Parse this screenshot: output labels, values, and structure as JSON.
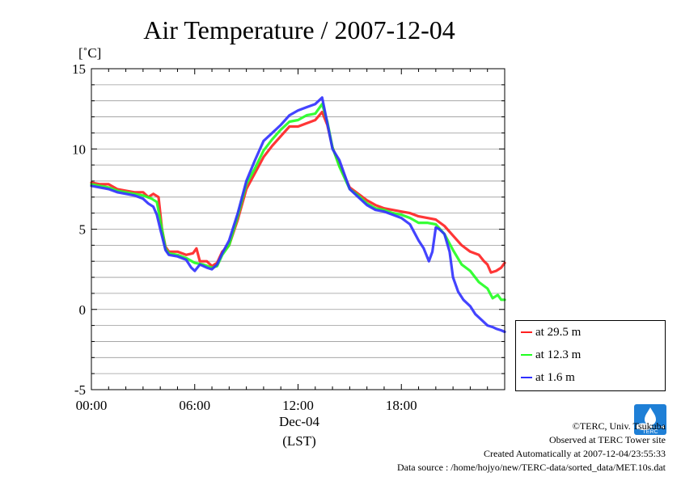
{
  "chart_data": {
    "type": "line",
    "title": "Air Temperature / 2007-12-04",
    "ylabel": "[˚C]",
    "xlabel": "Dec-04",
    "xlabel2": "(LST)",
    "xlim": [
      0,
      24
    ],
    "ylim": [
      -5,
      15
    ],
    "yticks": [
      {
        "value": 15,
        "label": "15"
      },
      {
        "value": 10,
        "label": "10"
      },
      {
        "value": 5,
        "label": "5"
      },
      {
        "value": 0,
        "label": "0"
      },
      {
        "value": -5,
        "label": "-5"
      }
    ],
    "xticks": [
      {
        "value": 0,
        "label": "00:00"
      },
      {
        "value": 6,
        "label": "06:00"
      },
      {
        "value": 12,
        "label": "12:00"
      },
      {
        "value": 18,
        "label": "18:00"
      }
    ],
    "grid": true,
    "legend_position": "right",
    "series": [
      {
        "name": "at 29.5 m",
        "color": "#ff2020",
        "points": [
          [
            0,
            7.9
          ],
          [
            0.5,
            7.8
          ],
          [
            1,
            7.8
          ],
          [
            1.5,
            7.5
          ],
          [
            2,
            7.4
          ],
          [
            2.5,
            7.3
          ],
          [
            3,
            7.3
          ],
          [
            3.3,
            7.0
          ],
          [
            3.6,
            7.2
          ],
          [
            3.9,
            7.0
          ],
          [
            4.1,
            5.0
          ],
          [
            4.3,
            3.9
          ],
          [
            4.5,
            3.6
          ],
          [
            5,
            3.6
          ],
          [
            5.5,
            3.4
          ],
          [
            5.9,
            3.5
          ],
          [
            6.1,
            3.8
          ],
          [
            6.3,
            3.0
          ],
          [
            6.7,
            3.0
          ],
          [
            7.0,
            2.7
          ],
          [
            7.3,
            2.9
          ],
          [
            7.6,
            3.6
          ],
          [
            8.0,
            4.0
          ],
          [
            8.5,
            5.6
          ],
          [
            9.0,
            7.5
          ],
          [
            9.5,
            8.5
          ],
          [
            10.0,
            9.5
          ],
          [
            10.5,
            10.2
          ],
          [
            11.0,
            10.8
          ],
          [
            11.5,
            11.4
          ],
          [
            12.0,
            11.4
          ],
          [
            12.5,
            11.6
          ],
          [
            13.0,
            11.8
          ],
          [
            13.4,
            12.3
          ],
          [
            13.7,
            11.5
          ],
          [
            14.0,
            10.1
          ],
          [
            14.4,
            9.0
          ],
          [
            15.0,
            7.6
          ],
          [
            15.5,
            7.2
          ],
          [
            16.0,
            6.8
          ],
          [
            16.5,
            6.5
          ],
          [
            17.0,
            6.3
          ],
          [
            17.5,
            6.2
          ],
          [
            18.0,
            6.1
          ],
          [
            18.5,
            6.0
          ],
          [
            19.0,
            5.8
          ],
          [
            19.5,
            5.7
          ],
          [
            20.0,
            5.6
          ],
          [
            20.5,
            5.2
          ],
          [
            21.0,
            4.6
          ],
          [
            21.5,
            4.0
          ],
          [
            22.0,
            3.6
          ],
          [
            22.5,
            3.4
          ],
          [
            22.8,
            3.0
          ],
          [
            23.0,
            2.8
          ],
          [
            23.2,
            2.3
          ],
          [
            23.5,
            2.4
          ],
          [
            23.8,
            2.6
          ],
          [
            24.0,
            2.9
          ]
        ]
      },
      {
        "name": "at 12.3 m",
        "color": "#20ff20",
        "points": [
          [
            0,
            7.8
          ],
          [
            0.5,
            7.7
          ],
          [
            1,
            7.6
          ],
          [
            1.5,
            7.4
          ],
          [
            2,
            7.3
          ],
          [
            2.5,
            7.2
          ],
          [
            3,
            7.1
          ],
          [
            3.5,
            6.9
          ],
          [
            3.8,
            6.7
          ],
          [
            4.1,
            5.0
          ],
          [
            4.3,
            3.8
          ],
          [
            4.5,
            3.5
          ],
          [
            5,
            3.4
          ],
          [
            5.5,
            3.2
          ],
          [
            6.0,
            2.9
          ],
          [
            6.5,
            2.8
          ],
          [
            7.0,
            2.6
          ],
          [
            7.3,
            2.7
          ],
          [
            7.6,
            3.4
          ],
          [
            8.0,
            4.0
          ],
          [
            8.5,
            5.8
          ],
          [
            9.0,
            7.8
          ],
          [
            9.5,
            8.8
          ],
          [
            10.0,
            9.9
          ],
          [
            10.5,
            10.6
          ],
          [
            11.0,
            11.2
          ],
          [
            11.5,
            11.7
          ],
          [
            12.0,
            11.8
          ],
          [
            12.5,
            12.1
          ],
          [
            13.0,
            12.2
          ],
          [
            13.4,
            12.8
          ],
          [
            13.7,
            11.7
          ],
          [
            14.0,
            10.1
          ],
          [
            14.4,
            8.9
          ],
          [
            15.0,
            7.5
          ],
          [
            15.5,
            7.1
          ],
          [
            16.0,
            6.6
          ],
          [
            16.5,
            6.3
          ],
          [
            17.0,
            6.2
          ],
          [
            17.5,
            6.0
          ],
          [
            18.0,
            5.9
          ],
          [
            18.5,
            5.7
          ],
          [
            19.0,
            5.4
          ],
          [
            19.5,
            5.4
          ],
          [
            20.0,
            5.3
          ],
          [
            20.5,
            4.7
          ],
          [
            21.0,
            3.7
          ],
          [
            21.5,
            2.8
          ],
          [
            22.0,
            2.4
          ],
          [
            22.5,
            1.7
          ],
          [
            23.0,
            1.3
          ],
          [
            23.3,
            0.7
          ],
          [
            23.6,
            0.9
          ],
          [
            23.8,
            0.6
          ],
          [
            24.0,
            0.6
          ]
        ]
      },
      {
        "name": "at 1.6 m",
        "color": "#3030ff",
        "points": [
          [
            0,
            7.7
          ],
          [
            0.5,
            7.6
          ],
          [
            1,
            7.5
          ],
          [
            1.5,
            7.3
          ],
          [
            2,
            7.2
          ],
          [
            2.5,
            7.1
          ],
          [
            3.0,
            6.9
          ],
          [
            3.3,
            6.6
          ],
          [
            3.6,
            6.4
          ],
          [
            3.8,
            5.9
          ],
          [
            4.0,
            5.0
          ],
          [
            4.3,
            3.7
          ],
          [
            4.5,
            3.4
          ],
          [
            5,
            3.3
          ],
          [
            5.5,
            3.1
          ],
          [
            5.8,
            2.6
          ],
          [
            6.0,
            2.4
          ],
          [
            6.3,
            2.8
          ],
          [
            6.7,
            2.6
          ],
          [
            7.0,
            2.5
          ],
          [
            7.3,
            2.8
          ],
          [
            7.6,
            3.5
          ],
          [
            8.0,
            4.3
          ],
          [
            8.5,
            6.0
          ],
          [
            9.0,
            8.0
          ],
          [
            9.5,
            9.3
          ],
          [
            10.0,
            10.5
          ],
          [
            10.5,
            11.0
          ],
          [
            11.0,
            11.5
          ],
          [
            11.5,
            12.1
          ],
          [
            12.0,
            12.4
          ],
          [
            12.5,
            12.6
          ],
          [
            13.0,
            12.8
          ],
          [
            13.4,
            13.2
          ],
          [
            13.7,
            11.6
          ],
          [
            14.0,
            10.0
          ],
          [
            14.4,
            9.3
          ],
          [
            15.0,
            7.5
          ],
          [
            15.5,
            7.0
          ],
          [
            16.0,
            6.5
          ],
          [
            16.5,
            6.2
          ],
          [
            17.0,
            6.1
          ],
          [
            17.5,
            5.9
          ],
          [
            18.0,
            5.7
          ],
          [
            18.5,
            5.3
          ],
          [
            19.0,
            4.3
          ],
          [
            19.3,
            3.8
          ],
          [
            19.6,
            3.0
          ],
          [
            19.8,
            3.6
          ],
          [
            20.0,
            5.1
          ],
          [
            20.2,
            5.0
          ],
          [
            20.5,
            4.7
          ],
          [
            20.8,
            3.6
          ],
          [
            21.0,
            2.0
          ],
          [
            21.3,
            1.1
          ],
          [
            21.6,
            0.6
          ],
          [
            22.0,
            0.2
          ],
          [
            22.3,
            -0.3
          ],
          [
            22.7,
            -0.7
          ],
          [
            23.0,
            -1.0
          ],
          [
            23.3,
            -1.1
          ],
          [
            23.5,
            -1.2
          ],
          [
            23.8,
            -1.3
          ],
          [
            24.0,
            -1.4
          ]
        ]
      }
    ]
  },
  "credits": {
    "line1": "©TERC, Univ. Tsukuba",
    "line2": "Observed at TERC Tower site",
    "line3": "Created Automatically at 2007-12-04/23:55:33",
    "line4": "Data source : /home/hojyo/new/TERC-data/sorted_data/MET.10s.dat"
  },
  "logo": {
    "text": "TERC",
    "color": "#1e7fd6"
  }
}
